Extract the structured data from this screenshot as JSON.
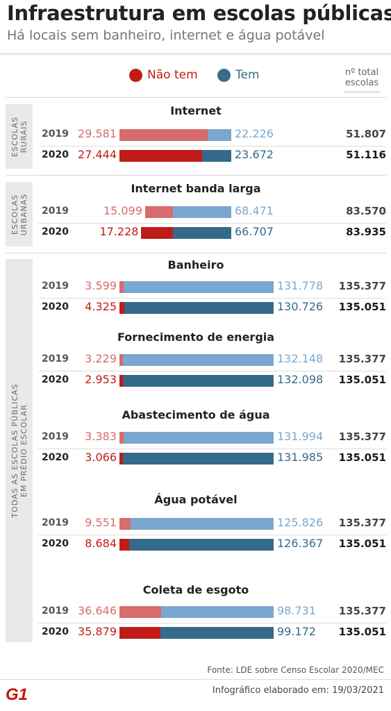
{
  "header": {
    "title": "Infraestrutura em escolas públicas",
    "subtitle": "Há locais sem banheiro, internet e água potável"
  },
  "legend": {
    "no": "Não tem",
    "yes": "Tem"
  },
  "total_header": [
    "nº total",
    "escolas"
  ],
  "colors": {
    "no_2019": "#d86b6b",
    "no_2020": "#c11b17",
    "yes_2019": "#7aa7cf",
    "yes_2020": "#346a8a"
  },
  "groups": {
    "rural": [
      "ESCOLAS",
      "RURAIS"
    ],
    "urban": [
      "ESCOLAS",
      "URBANAS"
    ],
    "all": [
      "TODAS AS ESCOLAS PÚBLICAS",
      "EM PRÉDIO ESCOLAR"
    ]
  },
  "chart_data": {
    "type": "bar",
    "stacked": true,
    "categories": [
      "Internet",
      "Internet banda larga",
      "Banheiro",
      "Fornecimento de energia",
      "Abastecimento de água",
      "Água potável",
      "Coleta de esgoto"
    ],
    "years": [
      "2019",
      "2020"
    ],
    "series": [
      {
        "name": "Não tem",
        "values": [
          [
            29581,
            27444
          ],
          [
            15099,
            17228
          ],
          [
            3599,
            4325
          ],
          [
            3229,
            2953
          ],
          [
            3383,
            3066
          ],
          [
            9551,
            8684
          ],
          [
            36646,
            35879
          ]
        ]
      },
      {
        "name": "Tem",
        "values": [
          [
            22226,
            23672
          ],
          [
            68471,
            66707
          ],
          [
            131778,
            130726
          ],
          [
            132148,
            132098
          ],
          [
            131994,
            131985
          ],
          [
            125826,
            126367
          ],
          [
            98731,
            99172
          ]
        ]
      }
    ],
    "totals": [
      [
        51807,
        51116
      ],
      [
        83570,
        83935
      ],
      [
        135377,
        135051
      ],
      [
        135377,
        135051
      ],
      [
        135377,
        135051
      ],
      [
        135377,
        135051
      ],
      [
        135377,
        135051
      ]
    ],
    "labels": {
      "no": [
        [
          "29.581",
          "27.444"
        ],
        [
          "15.099",
          "17.228"
        ],
        [
          "3.599",
          "4.325"
        ],
        [
          "3.229",
          "2.953"
        ],
        [
          "3.383",
          "3.066"
        ],
        [
          "9.551",
          "8.684"
        ],
        [
          "36.646",
          "35.879"
        ]
      ],
      "yes": [
        [
          "22.226",
          "23.672"
        ],
        [
          "68.471",
          "66.707"
        ],
        [
          "131.778",
          "130.726"
        ],
        [
          "132.148",
          "132.098"
        ],
        [
          "131.994",
          "131.985"
        ],
        [
          "125.826",
          "126.367"
        ],
        [
          "98.731",
          "99.172"
        ]
      ],
      "total": [
        [
          "51.807",
          "51.116"
        ],
        [
          "83.570",
          "83.935"
        ],
        [
          "135.377",
          "135.051"
        ],
        [
          "135.377",
          "135.051"
        ],
        [
          "135.377",
          "135.051"
        ],
        [
          "135.377",
          "135.051"
        ],
        [
          "135.377",
          "135.051"
        ]
      ]
    }
  },
  "footer": {
    "source": "Fonte: LDE sobre Censo Escolar 2020/MEC",
    "credit": "Infográfico elaborado em: 19/03/2021",
    "logo_text": "G1",
    "logo_color": "#c4170c"
  }
}
